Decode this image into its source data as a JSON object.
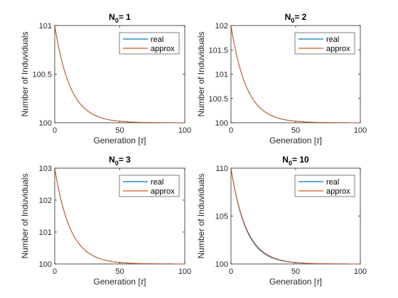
{
  "chart_data": [
    {
      "type": "line",
      "title_main": "N",
      "title_sub": "0",
      "title_rest": "= 1",
      "xlabel": "Generation [τ]",
      "ylabel": "Number of Induviduals",
      "xlim": [
        0,
        100
      ],
      "ylim": [
        100,
        101
      ],
      "xticks": [
        "0",
        "50",
        "100"
      ],
      "yticks": [
        {
          "v": 100,
          "label": "100"
        },
        {
          "v": 100.5,
          "label": "100.5"
        },
        {
          "v": 101,
          "label": "101"
        }
      ],
      "legend_position": "top-right",
      "series": [
        {
          "name": "real",
          "color": "#0072BD",
          "n0": 1
        },
        {
          "name": "approx",
          "color": "#D95319",
          "n0": 1
        }
      ]
    },
    {
      "type": "line",
      "title_main": "N",
      "title_sub": "0",
      "title_rest": "= 2",
      "xlabel": "Generation [τ]",
      "ylabel": "Number of Induviduals",
      "xlim": [
        0,
        100
      ],
      "ylim": [
        100,
        102
      ],
      "xticks": [
        "0",
        "50",
        "100"
      ],
      "yticks": [
        {
          "v": 100,
          "label": "100"
        },
        {
          "v": 100.5,
          "label": "100.5"
        },
        {
          "v": 101,
          "label": "101"
        },
        {
          "v": 101.5,
          "label": "101.5"
        },
        {
          "v": 102,
          "label": "102"
        }
      ],
      "legend_position": "top-right",
      "series": [
        {
          "name": "real",
          "color": "#0072BD",
          "n0": 2
        },
        {
          "name": "approx",
          "color": "#D95319",
          "n0": 2
        }
      ]
    },
    {
      "type": "line",
      "title_main": "N",
      "title_sub": "0",
      "title_rest": "= 3",
      "xlabel": "Generation [τ]",
      "ylabel": "Number of Induviduals",
      "xlim": [
        0,
        100
      ],
      "ylim": [
        100,
        103
      ],
      "xticks": [
        "0",
        "50",
        "100"
      ],
      "yticks": [
        {
          "v": 100,
          "label": "100"
        },
        {
          "v": 101,
          "label": "101"
        },
        {
          "v": 102,
          "label": "102"
        },
        {
          "v": 103,
          "label": "103"
        }
      ],
      "legend_position": "top-right",
      "series": [
        {
          "name": "real",
          "color": "#0072BD",
          "n0": 3
        },
        {
          "name": "approx",
          "color": "#D95319",
          "n0": 3
        }
      ]
    },
    {
      "type": "line",
      "title_main": "N",
      "title_sub": "0",
      "title_rest": "= 10",
      "xlabel": "Generation [τ]",
      "ylabel": "Number of Induviduals",
      "xlim": [
        0,
        100
      ],
      "ylim": [
        100,
        110
      ],
      "xticks": [
        "0",
        "50",
        "100"
      ],
      "yticks": [
        {
          "v": 100,
          "label": "100"
        },
        {
          "v": 105,
          "label": "105"
        },
        {
          "v": 110,
          "label": "110"
        }
      ],
      "legend_position": "top-right",
      "series": [
        {
          "name": "real",
          "color": "#0072BD",
          "n0": 10
        },
        {
          "name": "approx",
          "color": "#D95319",
          "n0": 10
        }
      ]
    }
  ]
}
